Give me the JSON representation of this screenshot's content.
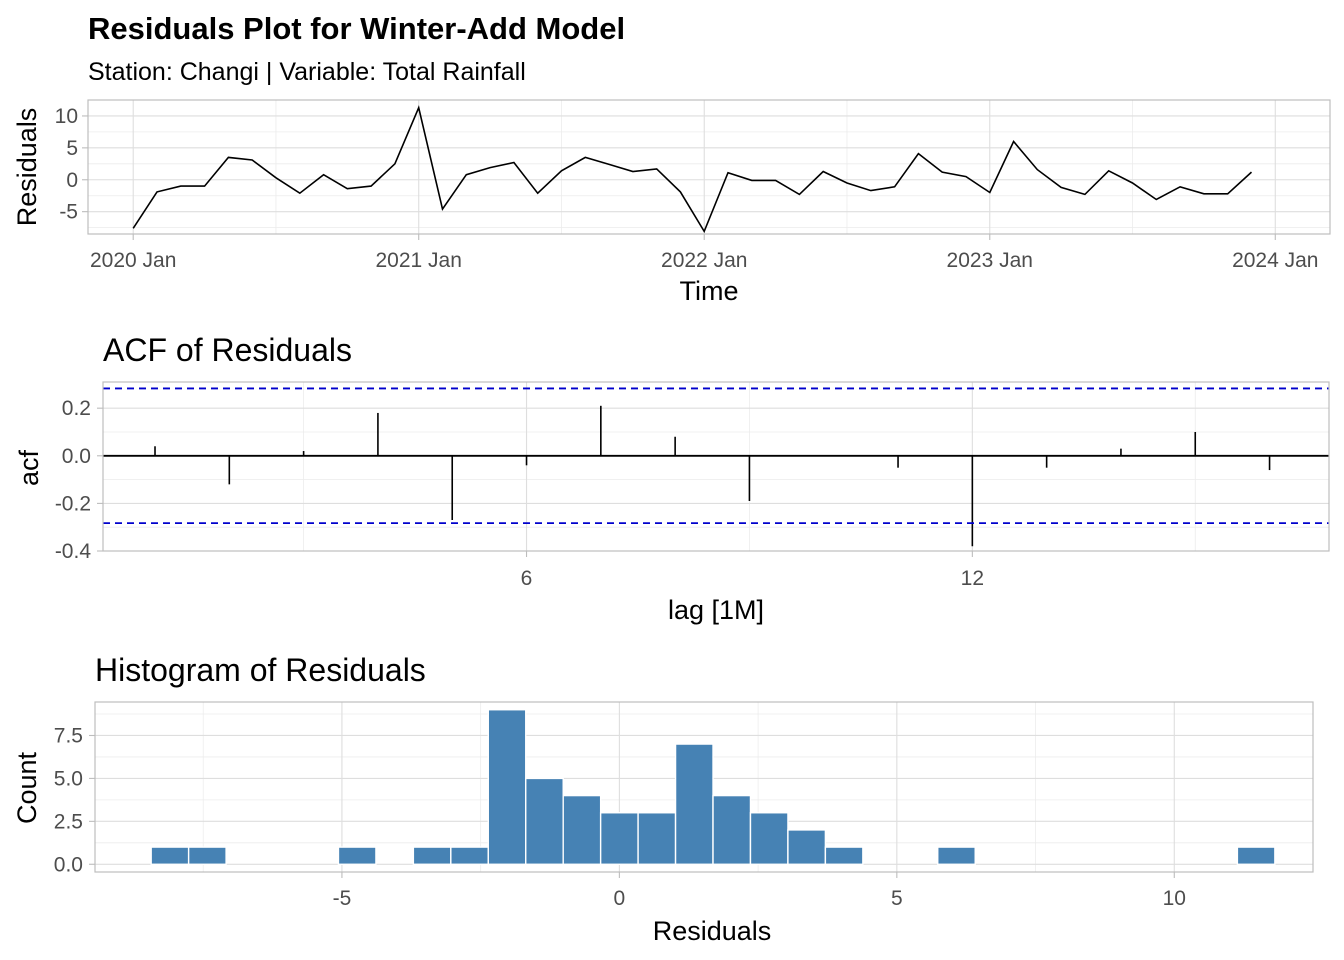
{
  "title": "Residuals Plot for Winter-Add Model",
  "subtitle": "Station: Changi | Variable: Total Rainfall",
  "chart_data": [
    {
      "type": "line",
      "xlabel": "Time",
      "ylabel": "Residuals",
      "x_ticks": [
        "2020 Jan",
        "2021 Jan",
        "2022 Jan",
        "2023 Jan",
        "2024 Jan"
      ],
      "y_ticks": [
        "10",
        "5",
        "0",
        "-5"
      ],
      "ylim": [
        -8.5,
        12.5
      ],
      "color": "#000000",
      "x": [
        "2020-01",
        "2020-02",
        "2020-03",
        "2020-04",
        "2020-05",
        "2020-06",
        "2020-07",
        "2020-08",
        "2020-09",
        "2020-10",
        "2020-11",
        "2020-12",
        "2021-01",
        "2021-02",
        "2021-03",
        "2021-04",
        "2021-05",
        "2021-06",
        "2021-07",
        "2021-08",
        "2021-09",
        "2021-10",
        "2021-11",
        "2021-12",
        "2022-01",
        "2022-02",
        "2022-03",
        "2022-04",
        "2022-05",
        "2022-06",
        "2022-07",
        "2022-08",
        "2022-09",
        "2022-10",
        "2022-11",
        "2022-12",
        "2023-01",
        "2023-02",
        "2023-03",
        "2023-04",
        "2023-05",
        "2023-06",
        "2023-07",
        "2023-08",
        "2023-09",
        "2023-10",
        "2023-11",
        "2023-12"
      ],
      "values": [
        -7.6,
        -1.9,
        -1.0,
        -1.0,
        3.5,
        3.1,
        0.3,
        -2.1,
        0.8,
        -1.4,
        -1.0,
        2.5,
        11.3,
        -4.6,
        0.8,
        1.9,
        2.7,
        -2.1,
        1.4,
        3.5,
        2.4,
        1.3,
        1.7,
        -1.9,
        -8.1,
        1.1,
        -0.1,
        -0.1,
        -2.3,
        1.3,
        -0.5,
        -1.7,
        -1.1,
        4.1,
        1.2,
        0.5,
        -2.0,
        6.0,
        1.6,
        -1.2,
        -2.3,
        1.4,
        -0.5,
        -3.1,
        -1.1,
        -2.2,
        -2.2,
        1.2
      ]
    },
    {
      "type": "bar",
      "title": "ACF of Residuals",
      "xlabel": "lag [1M]",
      "ylabel": "acf",
      "x_ticks": [
        "6",
        "12"
      ],
      "y_ticks": [
        "0.2",
        "0.0",
        "-0.2",
        "-0.4"
      ],
      "ylim": [
        -0.4,
        0.31
      ],
      "confidence_bound": 0.283,
      "bound_color": "#0000cc",
      "lags": [
        1,
        2,
        3,
        4,
        5,
        6,
        7,
        8,
        9,
        10,
        11,
        12,
        13,
        14,
        15,
        16
      ],
      "values": [
        0.04,
        -0.12,
        0.02,
        0.18,
        -0.27,
        -0.04,
        0.21,
        0.08,
        -0.19,
        0.0,
        -0.05,
        -0.38,
        -0.05,
        0.03,
        0.1,
        -0.06
      ]
    },
    {
      "type": "bar",
      "title": "Histogram of Residuals",
      "xlabel": "Residuals",
      "ylabel": "Count",
      "x_ticks": [
        "-5",
        "0",
        "5",
        "10"
      ],
      "y_ticks": [
        "7.5",
        "5.0",
        "2.5",
        "0.0"
      ],
      "ylim": [
        -0.45,
        9.45
      ],
      "bin_width": 0.675,
      "bar_color": "#4682b4",
      "bin_centers": [
        -8.1,
        -7.425,
        -4.725,
        -3.375,
        -2.7,
        -2.025,
        -1.35,
        -0.675,
        0.0,
        0.675,
        1.35,
        2.025,
        2.7,
        3.375,
        4.05,
        6.075,
        11.475
      ],
      "counts": [
        1,
        1,
        1,
        1,
        1,
        9,
        5,
        4,
        3,
        3,
        7,
        4,
        3,
        2,
        1,
        1,
        1
      ]
    }
  ]
}
